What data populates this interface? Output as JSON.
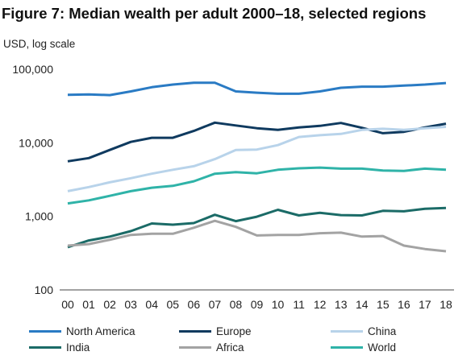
{
  "title": "Figure 7: Median wealth per adult 2000–18, selected regions",
  "chart_data": {
    "type": "line",
    "ylabel": "USD, log scale",
    "y_scale": "log",
    "ylim": [
      100,
      100000
    ],
    "y_ticks": [
      "100",
      "1,000",
      "10,000",
      "100,000"
    ],
    "y_tick_values": [
      100,
      1000,
      10000,
      100000
    ],
    "grid": false,
    "legend_position": "bottom",
    "x": [
      "00",
      "01",
      "02",
      "03",
      "04",
      "05",
      "06",
      "07",
      "08",
      "09",
      "10",
      "11",
      "12",
      "13",
      "14",
      "15",
      "16",
      "17",
      "18"
    ],
    "series": [
      {
        "name": "North America",
        "color": "#2a7bc4",
        "values": [
          45000,
          45500,
          44500,
          50000,
          57000,
          62000,
          65500,
          65500,
          50000,
          48000,
          46500,
          46500,
          50000,
          56000,
          58000,
          58000,
          60000,
          62000,
          65000
        ]
      },
      {
        "name": "Europe",
        "color": "#0f3a5f",
        "values": [
          5600,
          6200,
          8000,
          10300,
          11700,
          11700,
          14500,
          18800,
          17200,
          15800,
          15000,
          16200,
          17000,
          18600,
          16000,
          13500,
          14100,
          16200,
          18200
        ]
      },
      {
        "name": "China",
        "color": "#b8d3ea",
        "values": [
          2200,
          2500,
          2900,
          3300,
          3800,
          4300,
          4800,
          6000,
          8000,
          8100,
          9300,
          12000,
          12700,
          13200,
          15000,
          15500,
          15000,
          15800,
          16500
        ]
      },
      {
        "name": "India",
        "color": "#1b6b67",
        "values": [
          380,
          470,
          530,
          630,
          800,
          770,
          810,
          1050,
          860,
          990,
          1230,
          1030,
          1120,
          1040,
          1030,
          1190,
          1170,
          1270,
          1300
        ]
      },
      {
        "name": "Africa",
        "color": "#a3a3a3",
        "values": [
          400,
          420,
          480,
          560,
          580,
          580,
          700,
          870,
          720,
          550,
          560,
          560,
          590,
          600,
          530,
          540,
          400,
          360,
          335
        ]
      },
      {
        "name": "World",
        "color": "#2fb3a8",
        "values": [
          1500,
          1650,
          1900,
          2200,
          2450,
          2600,
          3000,
          3800,
          4000,
          3850,
          4300,
          4500,
          4600,
          4450,
          4450,
          4200,
          4150,
          4450,
          4300
        ]
      }
    ]
  }
}
